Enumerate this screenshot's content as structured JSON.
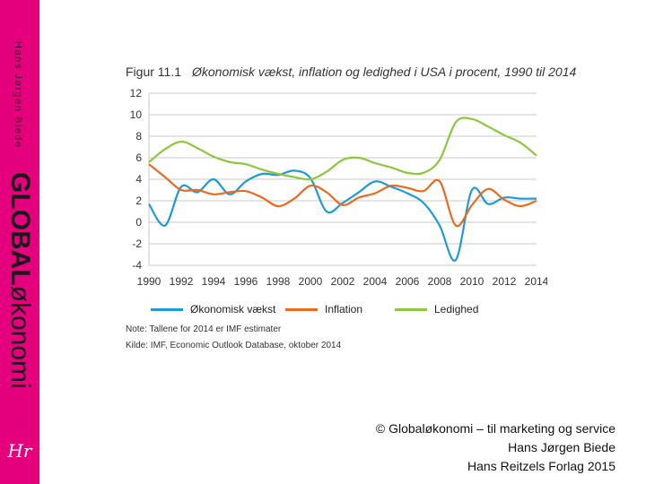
{
  "sidebar": {
    "author": "Hans Jørgen Biede",
    "brand_bold": "GLOBAL",
    "brand_light": "økonomi",
    "logo_text": "Hr"
  },
  "figure": {
    "number": "Figur 11.1",
    "title": "Økonomisk vækst, inflation og ledighed i USA i procent, 1990 til 2014"
  },
  "chart_data": {
    "type": "line",
    "title": "Økonomisk vækst, inflation og ledighed i USA i procent, 1990 til 2014",
    "xlabel": "",
    "ylabel": "",
    "ylim": [
      -4,
      12
    ],
    "xlim": [
      1990,
      2014
    ],
    "yticks": [
      12,
      10,
      8,
      6,
      4,
      2,
      0,
      -2,
      -4
    ],
    "xticks": [
      1990,
      1992,
      1994,
      1996,
      1998,
      2000,
      2002,
      2004,
      2006,
      2008,
      2010,
      2012,
      2014
    ],
    "grid": true,
    "legend_position": "bottom",
    "x": [
      1990,
      1991,
      1992,
      1993,
      1994,
      1995,
      1996,
      1997,
      1998,
      1999,
      2000,
      2001,
      2002,
      2003,
      2004,
      2005,
      2006,
      2007,
      2008,
      2009,
      2010,
      2011,
      2012,
      2013,
      2014
    ],
    "series": [
      {
        "name": "Økonomisk vækst",
        "color": "#1e9ad6",
        "values": [
          1.7,
          -0.3,
          3.3,
          2.8,
          4.0,
          2.6,
          3.8,
          4.5,
          4.4,
          4.8,
          4.1,
          1.0,
          1.8,
          2.8,
          3.8,
          3.3,
          2.7,
          1.8,
          -0.3,
          -3.5,
          3.0,
          1.7,
          2.3,
          2.2,
          2.2
        ]
      },
      {
        "name": "Inflation",
        "color": "#e86b1f",
        "values": [
          5.4,
          4.2,
          3.0,
          3.0,
          2.6,
          2.8,
          2.9,
          2.3,
          1.5,
          2.2,
          3.4,
          2.8,
          1.6,
          2.3,
          2.7,
          3.4,
          3.2,
          2.9,
          3.8,
          -0.3,
          1.6,
          3.1,
          2.1,
          1.5,
          2.0
        ]
      },
      {
        "name": "Ledighed",
        "color": "#8dc63f",
        "values": [
          5.6,
          6.8,
          7.5,
          6.9,
          6.1,
          5.6,
          5.4,
          4.9,
          4.5,
          4.2,
          4.0,
          4.7,
          5.8,
          6.0,
          5.5,
          5.1,
          4.6,
          4.6,
          5.8,
          9.3,
          9.6,
          8.9,
          8.1,
          7.4,
          6.2
        ]
      }
    ]
  },
  "notes": {
    "note": "Note: Tallene for 2014 er IMF estimater",
    "source": "Kilde: IMF, Economic Outlook Database, oktober 2014"
  },
  "footer": {
    "line1": "© Globaløkonomi – til marketing og service",
    "line2": "Hans Jørgen Biede",
    "line3": "Hans Reitzels Forlag 2015"
  }
}
